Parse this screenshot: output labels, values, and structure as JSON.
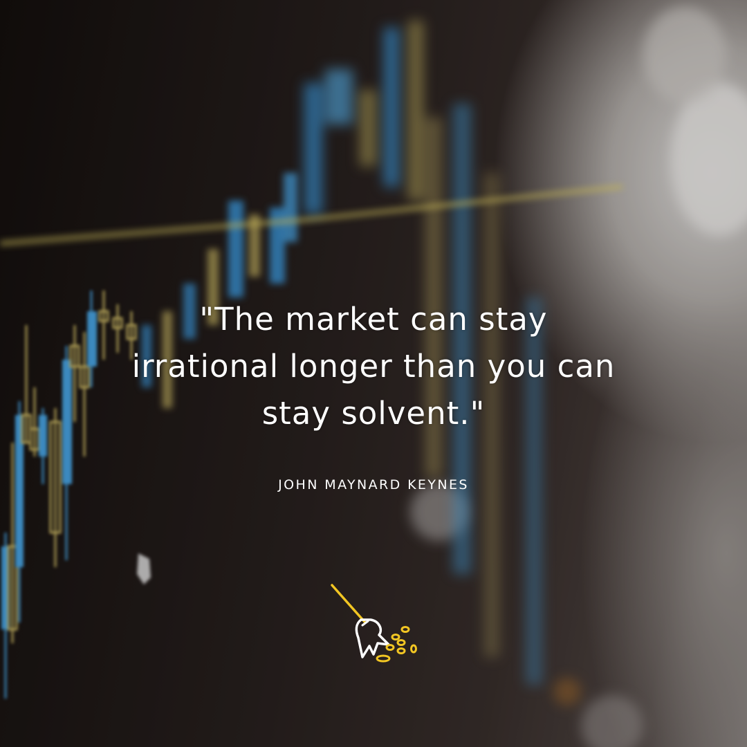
{
  "quote": {
    "text": "\"The market can stay irrational longer than you can stay solvent.\""
  },
  "author": {
    "name": "JOHN MAYNARD KEYNES"
  },
  "logo": {
    "icon": "broom-sweeping-coins-icon",
    "accent_color": "#f2c623",
    "stroke_color": "#ffffff"
  },
  "background": {
    "description_icon": "blurred-candlestick-chart",
    "up_color": "#4aa8e8",
    "down_color": "#d6c26a",
    "line_color": "#e9d66a"
  }
}
